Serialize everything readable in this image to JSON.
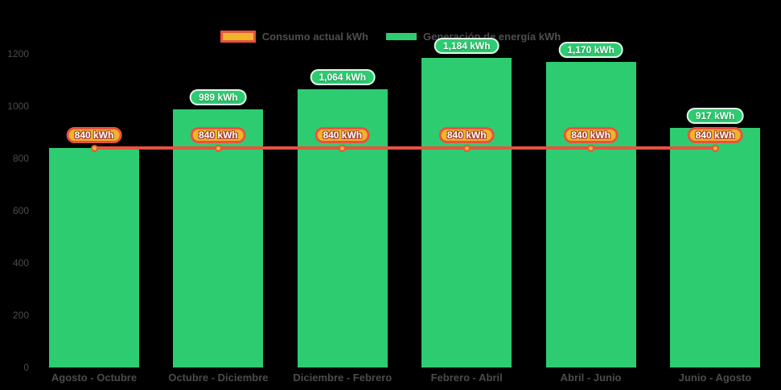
{
  "colors": {
    "background": "#000000",
    "bar_green": "#2ecc71",
    "line_red": "#e8533f",
    "badge_yellow": "#f0b42a",
    "badge_border_red": "#e8533f",
    "dot_fill": "#f2b22c",
    "axis_text": "#4c4c4c",
    "legend_text": "#4e4e4e"
  },
  "legend": {
    "items": [
      {
        "label": "Consumo actual kWh",
        "icon": "line-swatch",
        "fill": "#f0b42a",
        "border": "#e8533f"
      },
      {
        "label": "Generación de energía kWh",
        "icon": "bar-swatch",
        "fill": "#2ecc71",
        "border": ""
      }
    ]
  },
  "chart_data": {
    "type": "bar",
    "title": "",
    "xlabel": "",
    "ylabel": "",
    "categories": [
      "Agosto - Octubre",
      "Octubre - Diciembre",
      "Diciembre - Febrero",
      "Febrero - Abril",
      "Abril - Junio",
      "Junio - Agosto"
    ],
    "series": [
      {
        "name": "Generación de energía kWh",
        "type": "bar",
        "color": "#2ecc71",
        "values": [
          840,
          989,
          1064,
          1184,
          1170,
          917
        ],
        "data_labels": [
          null,
          "989 kWh",
          "1,064 kWh",
          "1,184 kWh",
          "1,170 kWh",
          "917 kWh"
        ]
      },
      {
        "name": "Consumo actual kWh",
        "type": "line",
        "color": "#e8533f",
        "values": [
          840,
          840,
          840,
          840,
          840,
          840
        ],
        "data_labels": [
          "840 kWh",
          "840 kWh",
          "840 kWh",
          "840 kWh",
          "840 kWh",
          "840 kWh"
        ]
      }
    ],
    "ylim": [
      0,
      1200
    ],
    "yticks": [
      0,
      200,
      400,
      600,
      800,
      1000,
      1200
    ],
    "grid": false,
    "legend_position": "top",
    "background": "#000000"
  }
}
